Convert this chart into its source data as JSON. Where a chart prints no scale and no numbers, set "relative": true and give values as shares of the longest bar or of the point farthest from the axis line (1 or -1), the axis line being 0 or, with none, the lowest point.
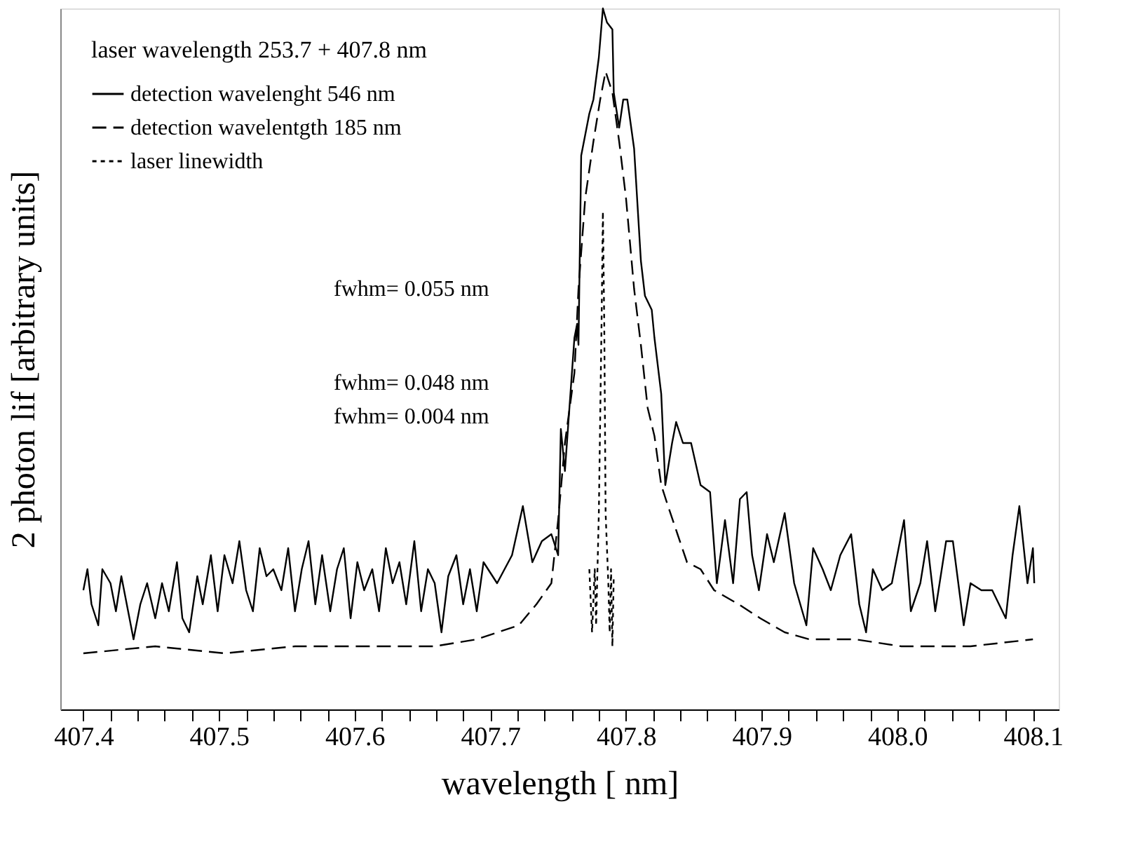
{
  "chart_data": {
    "type": "line",
    "relative": true,
    "xlabel": "wavelength [ nm]",
    "ylabel": "2 photon lif [arbitrary units]",
    "legend_title": "laser wavelength 253.7 + 407.8 nm",
    "legend": "top left",
    "grid": false,
    "marker": "none",
    "xlim": [
      407.383,
      408.119
    ],
    "xticks": [
      407.4,
      {
        "value": 407.42,
        "label": null
      },
      {
        "value": 407.44,
        "label": null
      },
      {
        "value": 407.46,
        "label": null
      },
      {
        "value": 407.48,
        "label": null
      },
      407.5,
      {
        "value": 407.52,
        "label": null
      },
      {
        "value": 407.54,
        "label": null
      },
      {
        "value": 407.56,
        "label": null
      },
      {
        "value": 407.58,
        "label": null
      },
      407.6,
      {
        "value": 407.62,
        "label": null
      },
      {
        "value": 407.64,
        "label": null
      },
      {
        "value": 407.66,
        "label": null
      },
      {
        "value": 407.68,
        "label": null
      },
      407.7,
      {
        "value": 407.72,
        "label": null
      },
      {
        "value": 407.74,
        "label": null
      },
      {
        "value": 407.76,
        "label": null
      },
      {
        "value": 407.78,
        "label": null
      },
      407.8,
      {
        "value": 407.82,
        "label": null
      },
      {
        "value": 407.84,
        "label": null
      },
      {
        "value": 407.86,
        "label": null
      },
      {
        "value": 407.88,
        "label": null
      },
      407.9,
      {
        "value": 407.92,
        "label": null
      },
      {
        "value": 407.94,
        "label": null
      },
      {
        "value": 407.96,
        "label": null
      },
      {
        "value": 407.98,
        "label": null
      },
      {
        "value": 408,
        "label": "408.0"
      },
      {
        "value": 408.02,
        "label": null
      },
      {
        "value": 408.04,
        "label": null
      },
      {
        "value": 408.06,
        "label": null
      },
      {
        "value": 408.08,
        "label": null
      },
      408.1
    ],
    "annotations": [
      "fwhm= 0.055 nm",
      "fwhm= 0.048 nm",
      "fwhm= 0.004 nm"
    ],
    "series": [
      {
        "name": "detection wavelenght 546 nm",
        "color": "#000000",
        "line_style": "solid",
        "x": [
          407.4,
          407.403,
          407.406,
          407.411,
          407.414,
          407.42,
          407.424,
          407.428,
          407.433,
          407.437,
          407.442,
          407.447,
          407.453,
          407.458,
          407.463,
          407.469,
          407.473,
          407.478,
          407.484,
          407.488,
          407.494,
          407.499,
          407.504,
          407.51,
          407.515,
          407.52,
          407.525,
          407.53,
          407.535,
          407.54,
          407.546,
          407.551,
          407.556,
          407.561,
          407.566,
          407.571,
          407.576,
          407.582,
          407.587,
          407.592,
          407.597,
          407.602,
          407.607,
          407.613,
          407.618,
          407.623,
          407.628,
          407.633,
          407.638,
          407.644,
          407.649,
          407.654,
          407.659,
          407.664,
          407.669,
          407.675,
          407.68,
          407.685,
          407.69,
          407.695,
          407.705,
          407.716,
          407.724,
          407.731,
          407.738,
          407.745,
          407.75,
          407.752,
          407.755,
          407.762,
          407.764,
          407.765,
          407.767,
          407.77,
          407.773,
          407.776,
          407.78,
          407.783,
          407.786,
          407.79,
          407.791,
          407.795,
          407.798,
          407.801,
          407.806,
          407.811,
          407.814,
          407.819,
          407.821,
          407.826,
          407.829,
          407.834,
          407.837,
          407.842,
          407.848,
          407.855,
          407.862,
          407.867,
          407.873,
          407.879,
          407.884,
          407.889,
          407.893,
          407.898,
          407.904,
          407.909,
          407.917,
          407.924,
          407.933,
          407.938,
          407.945,
          407.951,
          407.958,
          407.966,
          407.972,
          407.977,
          407.982,
          407.989,
          407.996,
          408.005,
          408.01,
          408.017,
          408.022,
          408.028,
          408.036,
          408.041,
          408.049,
          408.054,
          408.062,
          408.07,
          408.08,
          408.085,
          408.09,
          408.096,
          408.1,
          408.101
        ],
        "values": [
          0.17,
          0.2,
          0.15,
          0.12,
          0.2,
          0.18,
          0.14,
          0.19,
          0.14,
          0.1,
          0.15,
          0.18,
          0.13,
          0.18,
          0.14,
          0.21,
          0.13,
          0.11,
          0.19,
          0.15,
          0.22,
          0.14,
          0.22,
          0.18,
          0.24,
          0.17,
          0.14,
          0.23,
          0.19,
          0.2,
          0.17,
          0.23,
          0.14,
          0.2,
          0.24,
          0.15,
          0.22,
          0.14,
          0.2,
          0.23,
          0.13,
          0.21,
          0.17,
          0.2,
          0.14,
          0.23,
          0.18,
          0.21,
          0.15,
          0.24,
          0.14,
          0.2,
          0.18,
          0.11,
          0.19,
          0.22,
          0.15,
          0.2,
          0.14,
          0.21,
          0.18,
          0.22,
          0.29,
          0.21,
          0.24,
          0.25,
          0.22,
          0.4,
          0.34,
          0.53,
          0.55,
          0.52,
          0.79,
          0.82,
          0.85,
          0.87,
          0.93,
          1,
          0.98,
          0.97,
          0.88,
          0.83,
          0.87,
          0.87,
          0.8,
          0.64,
          0.59,
          0.57,
          0.53,
          0.45,
          0.32,
          0.38,
          0.41,
          0.38,
          0.38,
          0.32,
          0.31,
          0.18,
          0.27,
          0.18,
          0.3,
          0.31,
          0.22,
          0.17,
          0.25,
          0.21,
          0.28,
          0.18,
          0.12,
          0.23,
          0.2,
          0.17,
          0.22,
          0.25,
          0.15,
          0.11,
          0.2,
          0.17,
          0.18,
          0.27,
          0.14,
          0.18,
          0.24,
          0.14,
          0.24,
          0.24,
          0.12,
          0.18,
          0.17,
          0.17,
          0.13,
          0.22,
          0.29,
          0.18,
          0.23,
          0.18
        ]
      },
      {
        "name": "detection wavelentgth 185 nm",
        "color": "#000000",
        "line_style": "dashed",
        "x": [
          407.4,
          407.453,
          407.504,
          407.556,
          407.607,
          407.659,
          407.69,
          407.721,
          407.734,
          407.745,
          407.75,
          407.755,
          407.762,
          407.765,
          407.77,
          407.776,
          407.781,
          407.785,
          407.79,
          407.795,
          407.8,
          407.806,
          407.811,
          407.816,
          407.821,
          407.826,
          407.831,
          407.838,
          407.845,
          407.855,
          407.865,
          407.883,
          407.899,
          407.917,
          407.935,
          407.969,
          408.003,
          408.054,
          408.1
        ],
        "values": [
          0.08,
          0.09,
          0.08,
          0.09,
          0.09,
          0.09,
          0.1,
          0.12,
          0.15,
          0.18,
          0.27,
          0.38,
          0.48,
          0.6,
          0.73,
          0.81,
          0.87,
          0.91,
          0.88,
          0.81,
          0.73,
          0.6,
          0.52,
          0.43,
          0.39,
          0.32,
          0.29,
          0.25,
          0.21,
          0.2,
          0.17,
          0.15,
          0.13,
          0.11,
          0.1,
          0.1,
          0.09,
          0.09,
          0.1
        ]
      },
      {
        "name": "laser linewidth",
        "color": "#000000",
        "line_style": "dotted",
        "x": [
          407.773,
          407.775,
          407.777,
          407.778,
          407.78,
          407.782,
          407.783,
          407.784,
          407.785,
          407.787,
          407.788,
          407.789,
          407.79,
          407.791
        ],
        "values": [
          0.2,
          0.11,
          0.2,
          0.12,
          0.28,
          0.55,
          0.71,
          0.55,
          0.28,
          0.18,
          0.11,
          0.2,
          0.09,
          0.19
        ]
      }
    ]
  }
}
